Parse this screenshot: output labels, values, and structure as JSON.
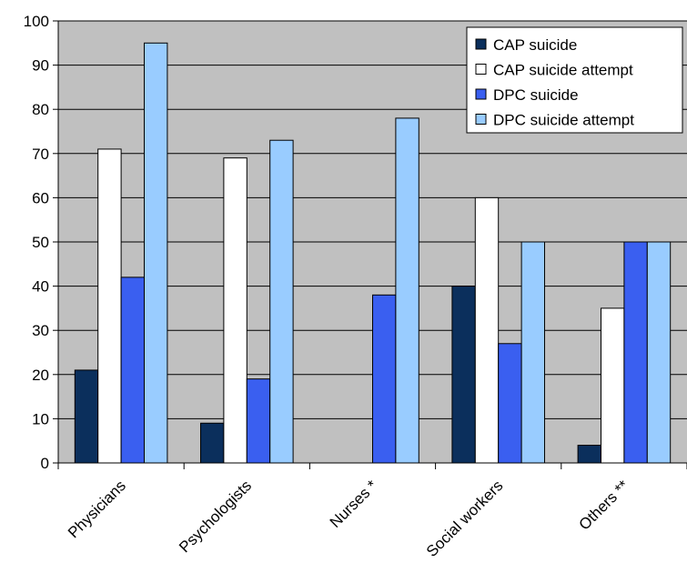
{
  "chart_data": {
    "type": "bar",
    "categories": [
      "Physicians",
      "Psychologists",
      "Nurses *",
      "Social workers",
      "Others **"
    ],
    "series": [
      {
        "name": "CAP suicide",
        "color": "#0b2f5c",
        "values": [
          21,
          9,
          0,
          40,
          4
        ]
      },
      {
        "name": "CAP suicide attempt",
        "color": "#ffffff",
        "values": [
          71,
          69,
          0,
          60,
          35
        ]
      },
      {
        "name": "DPC suicide",
        "color": "#3a5ff0",
        "values": [
          42,
          19,
          38,
          27,
          50
        ]
      },
      {
        "name": "DPC suicide attempt",
        "color": "#99ccff",
        "values": [
          95,
          73,
          78,
          50,
          50
        ]
      }
    ],
    "yticks": [
      0,
      10,
      20,
      30,
      40,
      50,
      60,
      70,
      80,
      90,
      100
    ],
    "ylim": [
      0,
      100
    ],
    "grid": true,
    "plot_background": "#c0c0c0",
    "legend_position": "top-right",
    "title": "",
    "xlabel": "",
    "ylabel": ""
  }
}
